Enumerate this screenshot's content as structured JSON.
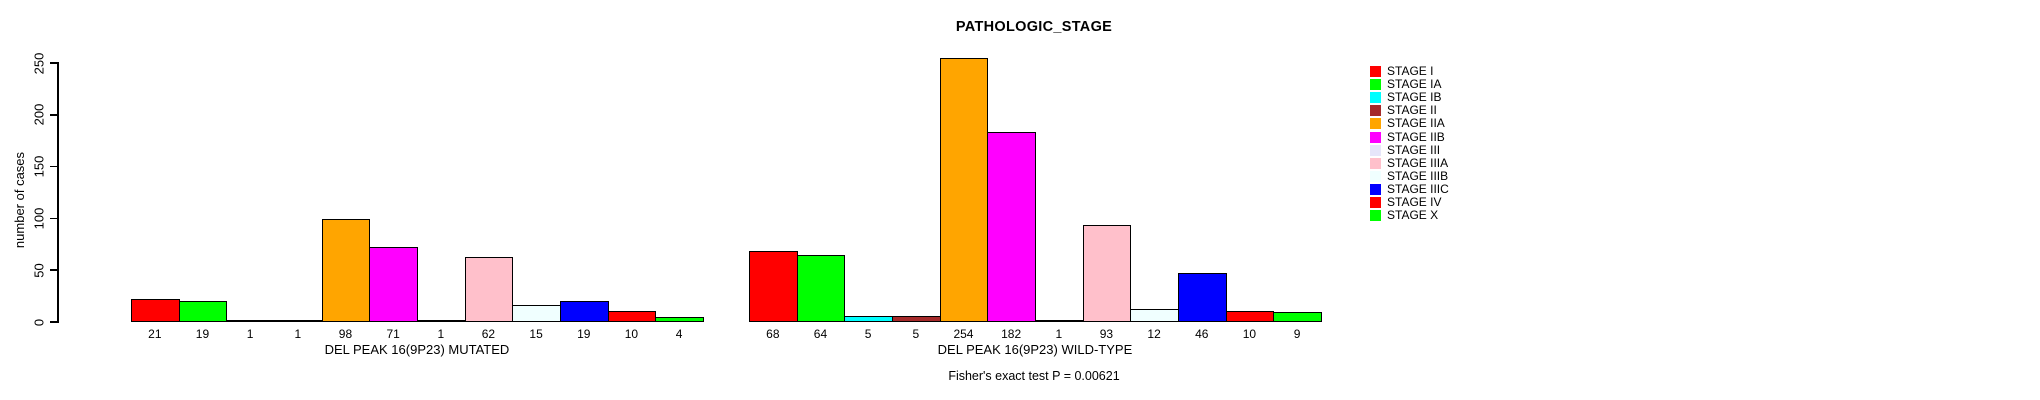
{
  "title": "PATHOLOGIC_STAGE",
  "chart_data": {
    "type": "bar",
    "title": "PATHOLOGIC_STAGE",
    "ylabel": "number of cases",
    "xlabel": "",
    "ylim": [
      0,
      250
    ],
    "yticks": [
      0,
      50,
      100,
      150,
      200,
      250
    ],
    "grid": false,
    "legend_position": "right",
    "categories": [
      "STAGE I",
      "STAGE IA",
      "STAGE IB",
      "STAGE II",
      "STAGE IIA",
      "STAGE IIB",
      "STAGE III",
      "STAGE IIIA",
      "STAGE IIIB",
      "STAGE IIIC",
      "STAGE IV",
      "STAGE X"
    ],
    "colors": [
      "#FF0000",
      "#00FF00",
      "#00FFFF",
      "#A52A2A",
      "#FFA500",
      "#FF00FF",
      "#E6E6FA",
      "#FFC0CB",
      "#F0FFFF",
      "#0000FF",
      "#FF0000",
      "#00FF00"
    ],
    "series": [
      {
        "name": "DEL PEAK 16(9P23) MUTATED",
        "values": [
          21,
          19,
          1,
          1,
          98,
          71,
          1,
          62,
          15,
          19,
          10,
          4
        ]
      },
      {
        "name": "DEL PEAK 16(9P23) WILD-TYPE",
        "values": [
          68,
          64,
          5,
          5,
          254,
          182,
          1,
          93,
          12,
          46,
          10,
          9
        ]
      }
    ],
    "bar_value_labels_shown": true,
    "annotation": "Fisher's exact test P = 0.00621"
  }
}
